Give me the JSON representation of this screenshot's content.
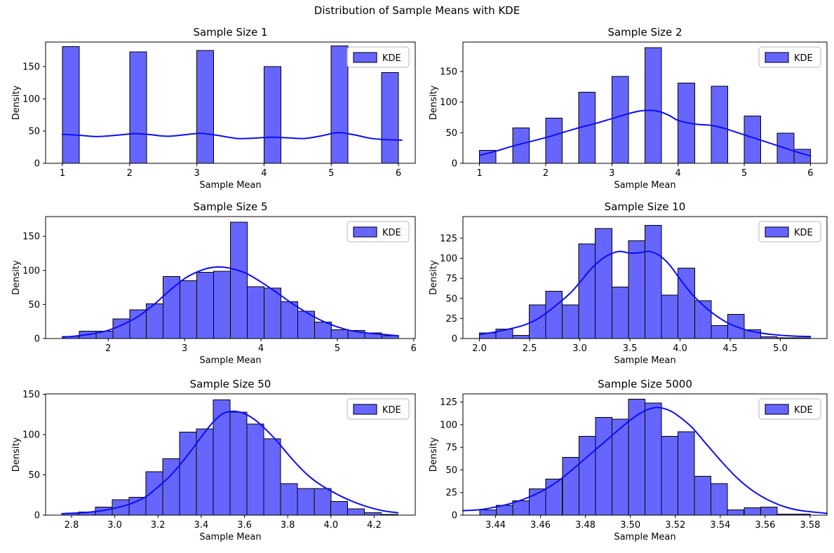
{
  "figure": {
    "suptitle": "Distribution of Sample Means with KDE"
  },
  "colors": {
    "bar_fill": "#6666ff",
    "bar_edge": "#000000",
    "kde_line": "#0d0df5",
    "legend_border": "#b7b7b7",
    "legend_bg": "#ffffff",
    "text": "#000000"
  },
  "chart_data": [
    {
      "type": "bar",
      "subtype": "histogram+kde",
      "title": "Sample Size 1",
      "xlabel": "Sample Mean",
      "ylabel": "Density",
      "legend": "KDE",
      "legend_position": "upper right",
      "xlim": [
        0.75,
        6.25
      ],
      "ylim": [
        0,
        188
      ],
      "x_ticks": [
        1,
        2,
        3,
        4,
        5,
        6
      ],
      "x_tick_labels": [
        "1",
        "2",
        "3",
        "4",
        "5",
        "6"
      ],
      "y_ticks": [
        0,
        50,
        100,
        150
      ],
      "y_tick_labels": [
        "0",
        "50",
        "100",
        "150"
      ],
      "bars": [
        [
          1.0,
          1.25,
          181
        ],
        [
          2.0,
          2.25,
          173
        ],
        [
          3.0,
          3.25,
          175
        ],
        [
          4.0,
          4.25,
          150
        ],
        [
          5.0,
          5.25,
          182
        ],
        [
          5.75,
          6.0,
          141
        ]
      ],
      "kde_x": [
        1.0,
        1.25,
        1.5,
        1.75,
        2.0,
        2.1,
        2.3,
        2.55,
        2.8,
        3.05,
        3.3,
        3.6,
        3.85,
        4.1,
        4.35,
        4.6,
        4.85,
        5.1,
        5.35,
        5.6,
        5.85,
        6.05
      ],
      "kde_y": [
        45,
        43.5,
        41.5,
        43,
        45.5,
        46,
        44.5,
        42,
        44,
        46.5,
        43.5,
        38.5,
        39,
        40.5,
        39.5,
        38.5,
        42.5,
        47.5,
        44,
        38.5,
        36.5,
        36
      ]
    },
    {
      "type": "bar",
      "subtype": "histogram+kde",
      "title": "Sample Size 2",
      "xlabel": "Sample Mean",
      "ylabel": "Density",
      "legend": "KDE",
      "legend_position": "upper right",
      "xlim": [
        0.75,
        6.25
      ],
      "ylim": [
        0,
        198
      ],
      "x_ticks": [
        1,
        2,
        3,
        4,
        5,
        6
      ],
      "x_tick_labels": [
        "1",
        "2",
        "3",
        "4",
        "5",
        "6"
      ],
      "y_ticks": [
        0,
        50,
        100,
        150
      ],
      "y_tick_labels": [
        "0",
        "50",
        "100",
        "150"
      ],
      "bars": [
        [
          1.0,
          1.25,
          21
        ],
        [
          1.5,
          1.75,
          58
        ],
        [
          2.0,
          2.25,
          74
        ],
        [
          2.5,
          2.75,
          116
        ],
        [
          3.0,
          3.25,
          142
        ],
        [
          3.5,
          3.75,
          189
        ],
        [
          4.0,
          4.25,
          131
        ],
        [
          4.5,
          4.75,
          126
        ],
        [
          5.0,
          5.25,
          77
        ],
        [
          5.5,
          5.75,
          49
        ],
        [
          5.75,
          6.0,
          23
        ]
      ],
      "kde_x": [
        1.0,
        1.25,
        1.5,
        1.75,
        2.0,
        2.25,
        2.5,
        2.75,
        3.0,
        3.25,
        3.4,
        3.55,
        3.7,
        3.85,
        4.0,
        4.15,
        4.3,
        4.5,
        4.7,
        4.9,
        5.1,
        5.3,
        5.5,
        5.75,
        6.0
      ],
      "kde_y": [
        13,
        20,
        28,
        35,
        42,
        50,
        58,
        65,
        73,
        81,
        85,
        86.5,
        85,
        79,
        70,
        66,
        63.5,
        62,
        57,
        50,
        43,
        36,
        29,
        20,
        12
      ]
    },
    {
      "type": "bar",
      "subtype": "histogram+kde",
      "title": "Sample Size 5",
      "xlabel": "Sample Mean",
      "ylabel": "Density",
      "legend": "KDE",
      "legend_position": "upper right",
      "xlim": [
        1.18,
        6.02
      ],
      "ylim": [
        0,
        179
      ],
      "x_ticks": [
        2,
        3,
        4,
        5,
        6
      ],
      "x_tick_labels": [
        "2",
        "3",
        "4",
        "5",
        "6"
      ],
      "y_ticks": [
        0,
        50,
        100,
        150
      ],
      "y_tick_labels": [
        "0",
        "50",
        "100",
        "150"
      ],
      "bins": {
        "start": 1.4,
        "width": 0.22,
        "heights": [
          3,
          11,
          11,
          29,
          42,
          51,
          91,
          85,
          97,
          99,
          171,
          76,
          74,
          54,
          40,
          24,
          13,
          12,
          8,
          4
        ]
      },
      "kde_x": [
        1.4,
        1.6,
        1.8,
        2.0,
        2.2,
        2.4,
        2.6,
        2.8,
        3.0,
        3.15,
        3.3,
        3.45,
        3.6,
        3.8,
        4.0,
        4.2,
        4.4,
        4.6,
        4.8,
        5.0,
        5.2,
        5.4,
        5.6,
        5.8
      ],
      "kde_y": [
        2,
        4,
        7,
        12,
        21,
        33,
        50,
        70,
        88,
        97,
        103,
        105,
        103,
        96,
        83,
        68,
        52,
        38,
        26,
        17,
        11,
        8,
        6,
        4
      ]
    },
    {
      "type": "bar",
      "subtype": "histogram+kde",
      "title": "Sample Size 10",
      "xlabel": "Sample Mean",
      "ylabel": "Density",
      "legend": "KDE",
      "legend_position": "upper right",
      "xlim": [
        1.835,
        5.465
      ],
      "ylim": [
        0,
        152
      ],
      "x_ticks": [
        2.0,
        2.5,
        3.0,
        3.5,
        4.0,
        4.5,
        5.0
      ],
      "x_tick_labels": [
        "2.0",
        "2.5",
        "3.0",
        "3.5",
        "4.0",
        "4.5",
        "5.0"
      ],
      "y_ticks": [
        0,
        25,
        50,
        75,
        100,
        125
      ],
      "y_tick_labels": [
        "0",
        "25",
        "50",
        "75",
        "100",
        "125"
      ],
      "bins": {
        "start": 2.0,
        "width": 0.165,
        "heights": [
          7,
          12,
          4,
          42,
          59,
          42,
          118,
          137,
          64,
          122,
          141,
          54,
          88,
          47,
          16,
          30,
          11,
          2,
          1,
          1
        ]
      },
      "kde_x": [
        2.0,
        2.15,
        2.3,
        2.45,
        2.6,
        2.75,
        2.9,
        3.0,
        3.1,
        3.2,
        3.3,
        3.4,
        3.5,
        3.6,
        3.7,
        3.8,
        3.9,
        4.0,
        4.1,
        4.2,
        4.3,
        4.4,
        4.5,
        4.65,
        4.8,
        5.0,
        5.15,
        5.3
      ],
      "kde_y": [
        5,
        8,
        12,
        17,
        26,
        40,
        56,
        70,
        85,
        97,
        105,
        108.5,
        106.5,
        107,
        108.5,
        103,
        91,
        74,
        58,
        45,
        34,
        25,
        18,
        11,
        7,
        4,
        3,
        2.5
      ]
    },
    {
      "type": "bar",
      "subtype": "histogram+kde",
      "title": "Sample Size 50",
      "xlabel": "Sample Mean",
      "ylabel": "Density",
      "legend": "KDE",
      "legend_position": "upper right",
      "xlim": [
        2.68,
        4.39
      ],
      "ylim": [
        0,
        150.5
      ],
      "x_ticks": [
        2.8,
        3.0,
        3.2,
        3.4,
        3.6,
        3.8,
        4.0,
        4.2
      ],
      "x_tick_labels": [
        "2.8",
        "3.0",
        "3.2",
        "3.4",
        "3.6",
        "3.8",
        "4.0",
        "4.2"
      ],
      "y_ticks": [
        0,
        50,
        100,
        150
      ],
      "y_tick_labels": [
        "0",
        "50",
        "100",
        "150"
      ],
      "bins": {
        "start": 2.755,
        "width": 0.0778,
        "heights": [
          2,
          4,
          10,
          19,
          22,
          54,
          70,
          103,
          107,
          143,
          128,
          113,
          95,
          39,
          33,
          33,
          17,
          8,
          3,
          1
        ]
      },
      "kde_x": [
        2.76,
        2.85,
        2.95,
        3.05,
        3.1,
        3.15,
        3.2,
        3.25,
        3.3,
        3.35,
        3.4,
        3.45,
        3.5,
        3.55,
        3.6,
        3.65,
        3.7,
        3.75,
        3.8,
        3.85,
        3.9,
        3.95,
        4.0,
        4.05,
        4.1,
        4.15,
        4.2,
        4.25,
        4.31
      ],
      "kde_y": [
        2,
        3,
        6,
        12,
        17,
        24,
        35,
        47,
        62,
        79,
        97,
        114,
        126,
        129,
        126,
        118,
        106,
        92,
        76,
        61,
        48,
        38,
        30,
        23,
        17,
        12,
        8,
        5,
        3
      ]
    },
    {
      "type": "bar",
      "subtype": "histogram+kde",
      "title": "Sample Size 5000",
      "xlabel": "Sample Mean",
      "ylabel": "Density",
      "legend": "KDE",
      "legend_position": "upper right",
      "xlim": [
        3.4255,
        3.5875
      ],
      "ylim": [
        0,
        134
      ],
      "x_ticks": [
        3.44,
        3.46,
        3.48,
        3.5,
        3.52,
        3.54,
        3.56,
        3.58
      ],
      "x_tick_labels": [
        "3.44",
        "3.46",
        "3.48",
        "3.50",
        "3.52",
        "3.54",
        "3.56",
        "3.58"
      ],
      "y_ticks": [
        0,
        25,
        50,
        75,
        100,
        125
      ],
      "y_tick_labels": [
        "0",
        "25",
        "50",
        "75",
        "100",
        "125"
      ],
      "bins": {
        "start": 3.433,
        "width": 0.00735,
        "heights": [
          6,
          11,
          16,
          29,
          40,
          64,
          87,
          108,
          106,
          128,
          124,
          87,
          92,
          43,
          35,
          6,
          8,
          9,
          1,
          1
        ]
      },
      "kde_x": [
        3.4255,
        3.433,
        3.44,
        3.447,
        3.454,
        3.461,
        3.468,
        3.475,
        3.482,
        3.489,
        3.496,
        3.5,
        3.504,
        3.508,
        3.512,
        3.516,
        3.52,
        3.527,
        3.534,
        3.541,
        3.548,
        3.555,
        3.562,
        3.569,
        3.576,
        3.5875
      ],
      "kde_y": [
        5,
        6,
        9,
        13,
        19,
        27,
        38,
        52,
        67,
        82,
        97,
        105,
        112,
        117,
        119,
        117,
        112,
        98,
        78,
        58,
        40,
        26,
        16,
        9,
        5,
        2
      ]
    }
  ]
}
